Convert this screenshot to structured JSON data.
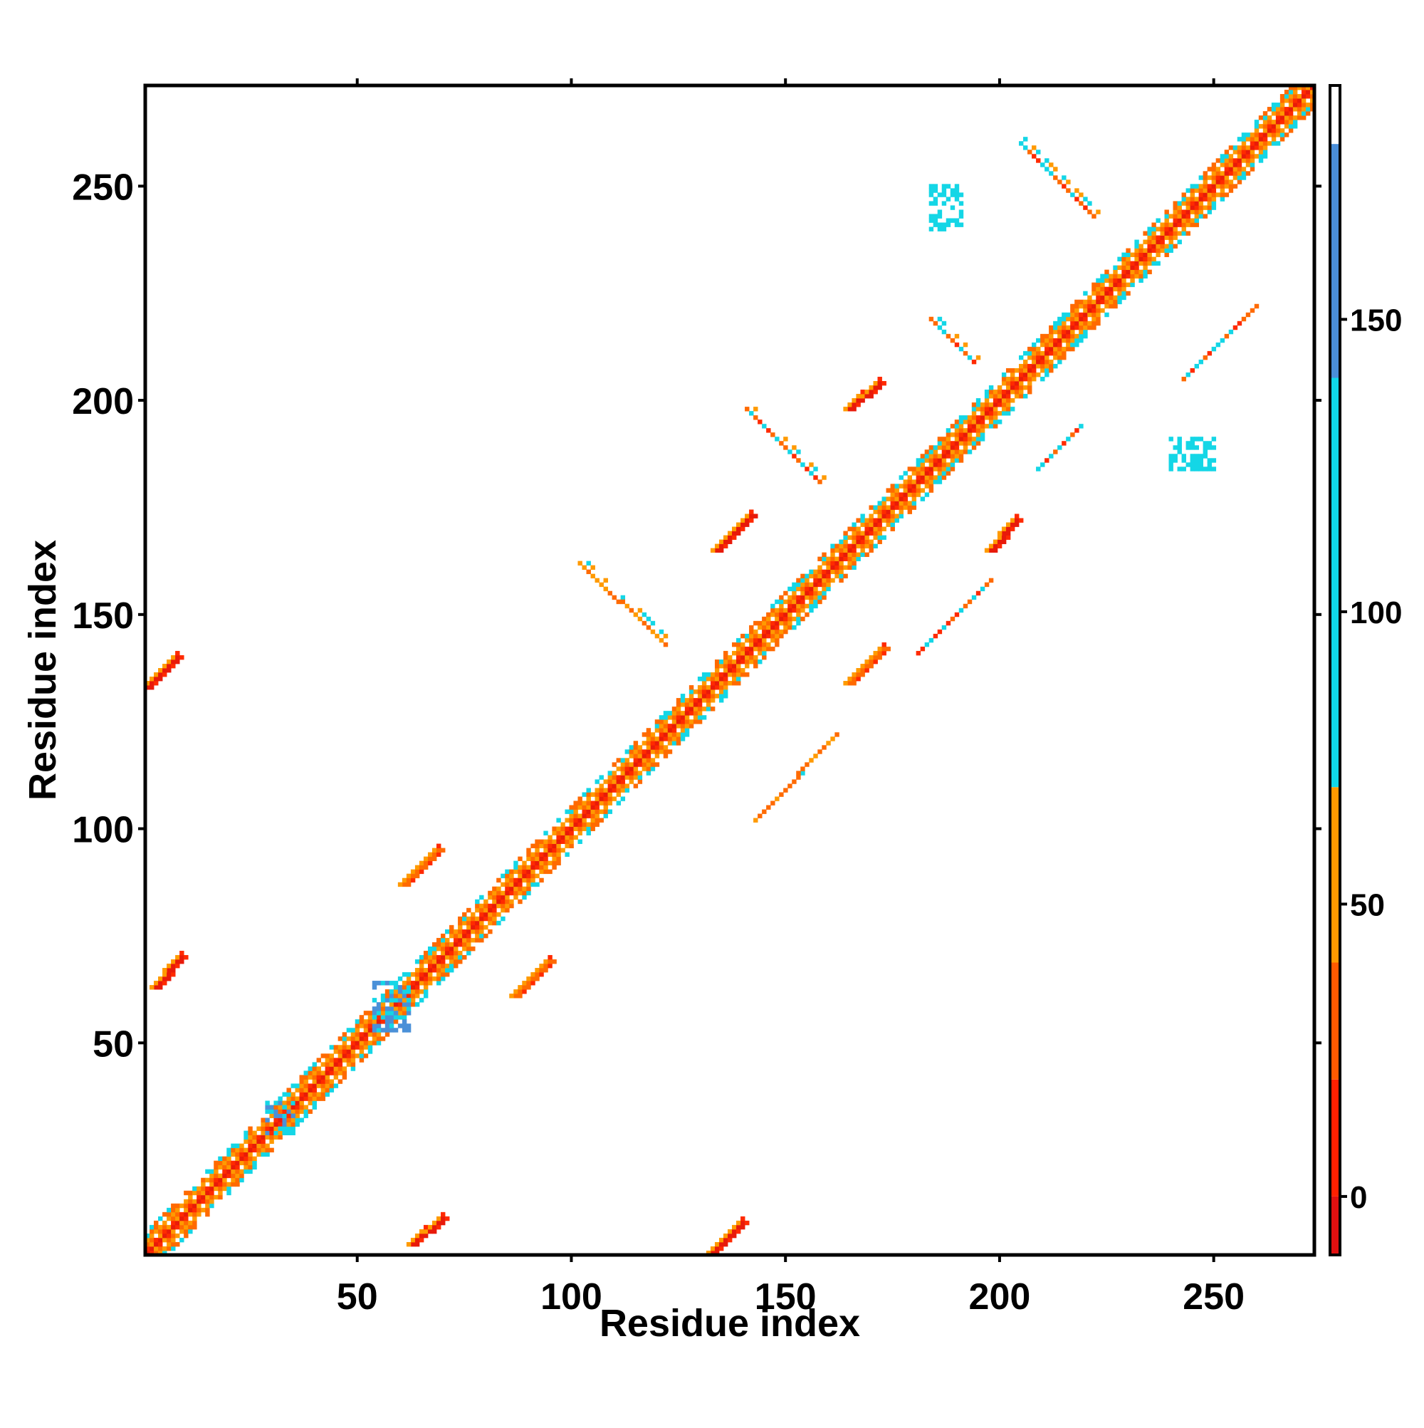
{
  "chart_data": {
    "type": "heatmap",
    "title": "",
    "xlabel": "Residue index",
    "ylabel": "Residue index",
    "xlim": [
      1,
      273
    ],
    "ylim": [
      1,
      273
    ],
    "x_ticks": [
      50,
      100,
      150,
      200,
      250
    ],
    "y_ticks": [
      50,
      100,
      150,
      200,
      250
    ],
    "colorbar": {
      "range": [
        -10,
        190
      ],
      "ticks": [
        0,
        50,
        100,
        150
      ],
      "bands": [
        {
          "from": -10,
          "to": 0,
          "color": "#e01010"
        },
        {
          "from": 0,
          "to": 20,
          "color": "#ff2000"
        },
        {
          "from": 20,
          "to": 40,
          "color": "#ff5a00"
        },
        {
          "from": 40,
          "to": 70,
          "color": "#ff9a00"
        },
        {
          "from": 70,
          "to": 140,
          "color": "#10d8e8"
        },
        {
          "from": 140,
          "to": 180,
          "color": "#4a8ed8"
        },
        {
          "from": 180,
          "to": 190,
          "color": "#ffffff"
        }
      ]
    },
    "diagonal": {
      "from": 1,
      "to": 273,
      "half_width": 5
    },
    "off_diagonal_features": [
      {
        "kind": "strand",
        "x": [
          1,
          8
        ],
        "y": [
          133,
          140
        ],
        "color": "red",
        "orientation": "parallel"
      },
      {
        "kind": "strand",
        "x": [
          133,
          140
        ],
        "y": [
          1,
          8
        ],
        "color": "red",
        "orientation": "parallel"
      },
      {
        "kind": "strand",
        "x": [
          3,
          9
        ],
        "y": [
          63,
          70
        ],
        "color": "red",
        "orientation": "parallel"
      },
      {
        "kind": "strand",
        "x": [
          63,
          70
        ],
        "y": [
          3,
          9
        ],
        "color": "red",
        "orientation": "parallel"
      },
      {
        "kind": "strand",
        "x": [
          61,
          69
        ],
        "y": [
          87,
          95
        ],
        "color": "orange",
        "orientation": "parallel"
      },
      {
        "kind": "strand",
        "x": [
          87,
          95
        ],
        "y": [
          61,
          69
        ],
        "color": "orange",
        "orientation": "parallel"
      },
      {
        "kind": "strand",
        "x": [
          134,
          142
        ],
        "y": [
          165,
          173
        ],
        "color": "red",
        "orientation": "parallel"
      },
      {
        "kind": "strand",
        "x": [
          165,
          173
        ],
        "y": [
          134,
          142
        ],
        "color": "orange",
        "orientation": "parallel"
      },
      {
        "kind": "strand",
        "x": [
          165,
          172
        ],
        "y": [
          198,
          204
        ],
        "color": "red",
        "orientation": "parallel"
      },
      {
        "kind": "strand",
        "x": [
          198,
          204
        ],
        "y": [
          165,
          172
        ],
        "color": "red",
        "orientation": "parallel"
      },
      {
        "kind": "antiparallel",
        "x": [
          102,
          122
        ],
        "y": [
          162,
          143
        ],
        "color": "orange"
      },
      {
        "kind": "antiparallel",
        "x": [
          143,
          162
        ],
        "y": [
          102,
          122
        ],
        "color": "orange"
      },
      {
        "kind": "antiparallel",
        "x": [
          141,
          158
        ],
        "y": [
          198,
          181
        ],
        "color": "mixed"
      },
      {
        "kind": "antiparallel",
        "x": [
          181,
          198
        ],
        "y": [
          141,
          158
        ],
        "color": "mixed"
      },
      {
        "kind": "antiparallel",
        "x": [
          205,
          222
        ],
        "y": [
          260,
          243
        ],
        "color": "mixed"
      },
      {
        "kind": "antiparallel",
        "x": [
          243,
          260
        ],
        "y": [
          205,
          222
        ],
        "color": "mixed"
      },
      {
        "kind": "antiparallel",
        "x": [
          184,
          194
        ],
        "y": [
          219,
          209
        ],
        "color": "mixed"
      },
      {
        "kind": "antiparallel",
        "x": [
          209,
          219
        ],
        "y": [
          184,
          194
        ],
        "color": "mixed"
      },
      {
        "kind": "cluster",
        "x": [
          54,
          62
        ],
        "y": [
          53,
          64
        ],
        "color": "blue"
      },
      {
        "kind": "cluster",
        "x": [
          29,
          35
        ],
        "y": [
          29,
          36
        ],
        "color": "blue"
      },
      {
        "kind": "cluster",
        "x": [
          184,
          191
        ],
        "y": [
          240,
          250
        ],
        "color": "cyan"
      },
      {
        "kind": "cluster",
        "x": [
          240,
          250
        ],
        "y": [
          184,
          191
        ],
        "color": "cyan"
      }
    ]
  }
}
